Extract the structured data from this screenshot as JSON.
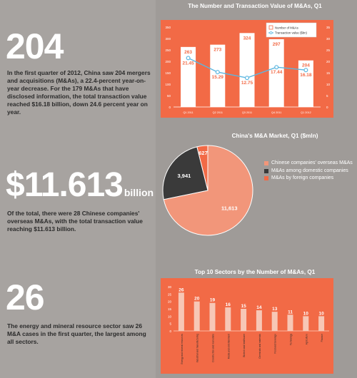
{
  "highlights": [
    {
      "big": "204",
      "text": "In the first quarter of 2012, China saw 204 mergers and acquisitions (M&As), a 22.4-percent year-on-year decrease. For the 179 M&As that have disclosed information, the total transaction value reached $16.18 billion, down 24.6 percent year on year."
    },
    {
      "big": "$11.613",
      "unit": "billion",
      "text": "Of the total, there were 28 Chinese companies' overseas M&As, with the total transaction value reaching $11.613 billion."
    },
    {
      "big": "26",
      "text": "The energy and mineral resource sector saw 26 M&A cases in the first quarter, the largest among all sectors."
    }
  ],
  "colors": {
    "background": "#9f9b98",
    "orange": "#f26a46",
    "salmon": "#f2967a",
    "dark": "#3a3a3a",
    "line": "#5bb6e0"
  },
  "chart_data": [
    {
      "type": "bar",
      "title": "The Number and Transaction Value of M&As, Q1",
      "categories": [
        "Q1 2011",
        "Q2 2011",
        "Q3 2011",
        "Q4 2011",
        "Q1 2012"
      ],
      "series": [
        {
          "name": "Number of M&As",
          "type": "bar",
          "values": [
            263,
            273,
            324,
            297,
            204
          ]
        },
        {
          "name": "Transaction value ($bn)",
          "type": "line",
          "values": [
            21.45,
            15.29,
            12.75,
            17.44,
            16.18
          ]
        }
      ],
      "yticks_left": [
        "350",
        "300",
        "250",
        "200",
        "150",
        "100",
        "50",
        "0"
      ],
      "ylim_left": [
        0,
        350
      ],
      "yticks_right": [
        "35",
        "30",
        "25",
        "20",
        "15",
        "10",
        "5",
        "0"
      ],
      "ylim_right": [
        0,
        35
      ]
    },
    {
      "type": "pie",
      "title": "China's M&A Market, Q1 ($mln)",
      "labels": [
        "Chinese companies' overseas M&As",
        "M&As among domestic companies",
        "M&As by foreign companies"
      ],
      "values": [
        11613,
        3941,
        627
      ],
      "value_labels": [
        "11,613",
        "3,941",
        "627"
      ]
    },
    {
      "type": "bar",
      "title": "Top 10 Sectors by the Number of M&As, Q1",
      "categories": [
        "Energy and mineral resources",
        "Industrial and manufacturing",
        "Construction and real estate",
        "Media and entertainment",
        "Biotech and healthcare",
        "Chemicals and materials",
        "Food and beverage",
        "Technology",
        "Agriculture",
        "Finance"
      ],
      "values": [
        26,
        20,
        19,
        16,
        15,
        14,
        13,
        11,
        10,
        10
      ],
      "yticks": [
        "30",
        "25",
        "20",
        "15",
        "10",
        "5",
        "0"
      ],
      "ylim": [
        0,
        30
      ]
    }
  ]
}
